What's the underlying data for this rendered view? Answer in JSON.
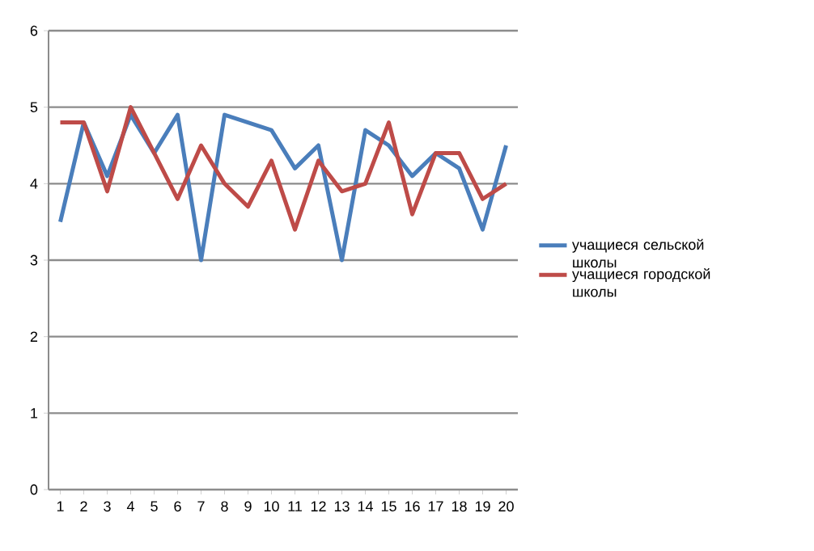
{
  "chart_data": {
    "type": "line",
    "categories": [
      "1",
      "2",
      "3",
      "4",
      "5",
      "6",
      "7",
      "8",
      "9",
      "10",
      "11",
      "12",
      "13",
      "14",
      "15",
      "16",
      "17",
      "18",
      "19",
      "20"
    ],
    "series": [
      {
        "name": "учащиеся сельской школы",
        "color": "#4a7ebb",
        "values": [
          3.5,
          4.8,
          4.1,
          4.9,
          4.4,
          4.9,
          3.0,
          4.9,
          4.8,
          4.7,
          4.2,
          4.5,
          3.0,
          4.7,
          4.5,
          4.1,
          4.4,
          4.2,
          3.4,
          4.5
        ]
      },
      {
        "name": "учащиеся городской школы",
        "color": "#be4b48",
        "values": [
          4.8,
          4.8,
          3.9,
          5.0,
          4.4,
          3.8,
          4.5,
          4.0,
          3.7,
          4.3,
          3.4,
          4.3,
          3.9,
          4.0,
          4.8,
          3.6,
          4.4,
          4.4,
          3.8,
          4.0
        ]
      }
    ],
    "ylim": [
      0,
      6
    ],
    "yticks": [
      0,
      1,
      2,
      3,
      4,
      5,
      6
    ],
    "grid": "y",
    "legend": "right",
    "marker": "none",
    "line_style": "solid"
  }
}
